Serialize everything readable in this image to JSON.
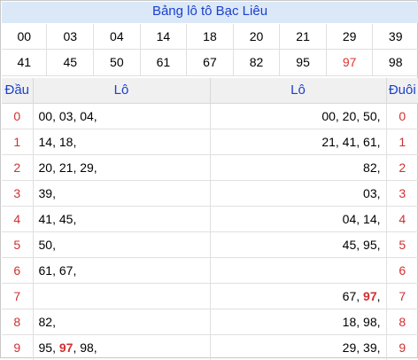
{
  "title": "Bảng lô tô Bạc Liêu",
  "numbers": {
    "row1": [
      "00",
      "03",
      "04",
      "14",
      "18",
      "20",
      "21",
      "29",
      "39"
    ],
    "row2": [
      "41",
      "45",
      "50",
      "61",
      "67",
      "82",
      "95",
      "97",
      "98"
    ]
  },
  "highlight_number": "97",
  "headers": {
    "dau": "Đầu",
    "lo_left": "Lô",
    "lo_right": "Lô",
    "duoi": "Đuôi"
  },
  "rows": [
    {
      "dau": "0",
      "left": [
        [
          "00",
          false
        ],
        [
          "03",
          false
        ],
        [
          "04",
          false
        ]
      ],
      "right": [
        [
          "00",
          false
        ],
        [
          "20",
          false
        ],
        [
          "50",
          false
        ]
      ],
      "duoi": "0"
    },
    {
      "dau": "1",
      "left": [
        [
          "14",
          false
        ],
        [
          "18",
          false
        ]
      ],
      "right": [
        [
          "21",
          false
        ],
        [
          "41",
          false
        ],
        [
          "61",
          false
        ]
      ],
      "duoi": "1"
    },
    {
      "dau": "2",
      "left": [
        [
          "20",
          false
        ],
        [
          "21",
          false
        ],
        [
          "29",
          false
        ]
      ],
      "right": [
        [
          "82",
          false
        ]
      ],
      "duoi": "2"
    },
    {
      "dau": "3",
      "left": [
        [
          "39",
          false
        ]
      ],
      "right": [
        [
          "03",
          false
        ]
      ],
      "duoi": "3"
    },
    {
      "dau": "4",
      "left": [
        [
          "41",
          false
        ],
        [
          "45",
          false
        ]
      ],
      "right": [
        [
          "04",
          false
        ],
        [
          "14",
          false
        ]
      ],
      "duoi": "4"
    },
    {
      "dau": "5",
      "left": [
        [
          "50",
          false
        ]
      ],
      "right": [
        [
          "45",
          false
        ],
        [
          "95",
          false
        ]
      ],
      "duoi": "5"
    },
    {
      "dau": "6",
      "left": [
        [
          "61",
          false
        ],
        [
          "67",
          false
        ]
      ],
      "right": [],
      "duoi": "6"
    },
    {
      "dau": "7",
      "left": [],
      "right": [
        [
          "67",
          false
        ],
        [
          "97",
          true
        ]
      ],
      "duoi": "7"
    },
    {
      "dau": "8",
      "left": [
        [
          "82",
          false
        ]
      ],
      "right": [
        [
          "18",
          false
        ],
        [
          "98",
          false
        ]
      ],
      "duoi": "8"
    },
    {
      "dau": "9",
      "left": [
        [
          "95",
          false
        ],
        [
          "97",
          true
        ],
        [
          "98",
          false
        ]
      ],
      "right": [
        [
          "29",
          false
        ],
        [
          "39",
          false
        ]
      ],
      "duoi": "9"
    }
  ],
  "colors": {
    "title_bg": "#dbe8f7",
    "title_text": "#1a3fcf",
    "accent_red": "#d03030"
  }
}
